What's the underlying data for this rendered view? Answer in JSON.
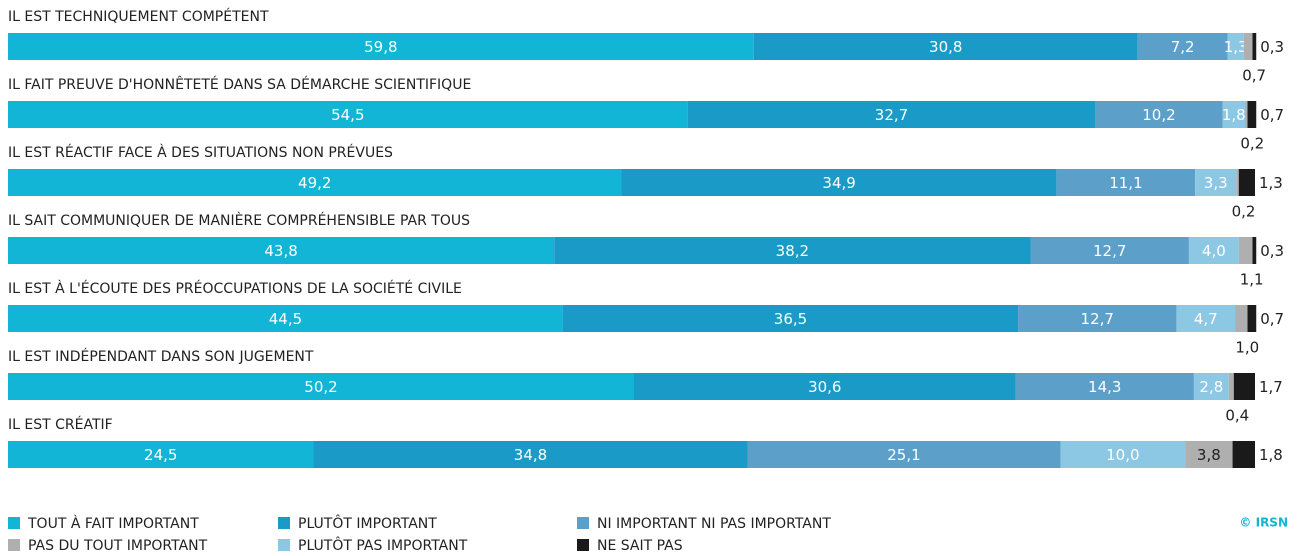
{
  "chart_data": {
    "type": "stacked-barh",
    "copyright": "© IRSN",
    "categories": [
      "IL EST TECHNIQUEMENT COMPÉTENT",
      "IL FAIT PREUVE D'HONNÊTETÉ DANS SA DÉMARCHE SCIENTIFIQUE",
      "IL EST RÉACTIF FACE À DES SITUATIONS NON PRÉVUES",
      "IL SAIT COMMUNIQUER DE MANIÈRE COMPRÉHENSIBLE PAR TOUS",
      "IL EST À L'ÉCOUTE DES PRÉOCCUPATIONS DE LA SOCIÉTÉ CIVILE",
      "IL EST INDÉPENDANT DANS SON JUGEMENT",
      "IL EST CRÉATIF"
    ],
    "series": [
      {
        "name": "TOUT À FAIT IMPORTANT",
        "color": "#12b5d6",
        "values": [
          59.8,
          54.5,
          49.2,
          43.8,
          44.5,
          50.2,
          24.5
        ],
        "value_labels": [
          "59,8",
          "54,5",
          "49,2",
          "43,8",
          "44,5",
          "50,2",
          "24,5"
        ]
      },
      {
        "name": "PLUTÔT IMPORTANT",
        "color": "#1a9bc7",
        "values": [
          30.8,
          32.7,
          34.9,
          38.2,
          36.5,
          30.6,
          34.8
        ],
        "value_labels": [
          "30,8",
          "32,7",
          "34,9",
          "38,2",
          "36,5",
          "30,6",
          "34,8"
        ]
      },
      {
        "name": "NI IMPORTANT NI PAS IMPORTANT",
        "color": "#5c9fc9",
        "values": [
          7.2,
          10.2,
          11.1,
          12.7,
          12.7,
          14.3,
          25.1
        ],
        "value_labels": [
          "7,2",
          "10,2",
          "11,1",
          "12,7",
          "12,7",
          "14,3",
          "25,1"
        ]
      },
      {
        "name": "PLUTÔT PAS IMPORTANT",
        "color": "#8cc8e3",
        "values": [
          1.3,
          1.8,
          3.3,
          4.0,
          4.7,
          2.8,
          10.0
        ],
        "value_labels": [
          "1,3",
          "1,8",
          "3,3",
          "4,0",
          "4,7",
          "2,8",
          "10,0"
        ]
      },
      {
        "name": "PAS DU TOUT IMPORTANT",
        "color": "#afafaf",
        "values": [
          0.7,
          0.2,
          0.2,
          1.1,
          1.0,
          0.4,
          3.8
        ],
        "value_labels": [
          "0,7",
          "0,2",
          "0,2",
          "1,1",
          "1,0",
          "0,4",
          "3,8"
        ]
      },
      {
        "name": "NE SAIT PAS",
        "color": "#1a1a1a",
        "values": [
          0.3,
          0.7,
          1.3,
          0.3,
          0.7,
          1.7,
          1.8
        ],
        "value_labels": [
          "0,3",
          "0,7",
          "1,3",
          "0,3",
          "0,7",
          "1,7",
          "1,8"
        ]
      }
    ]
  }
}
